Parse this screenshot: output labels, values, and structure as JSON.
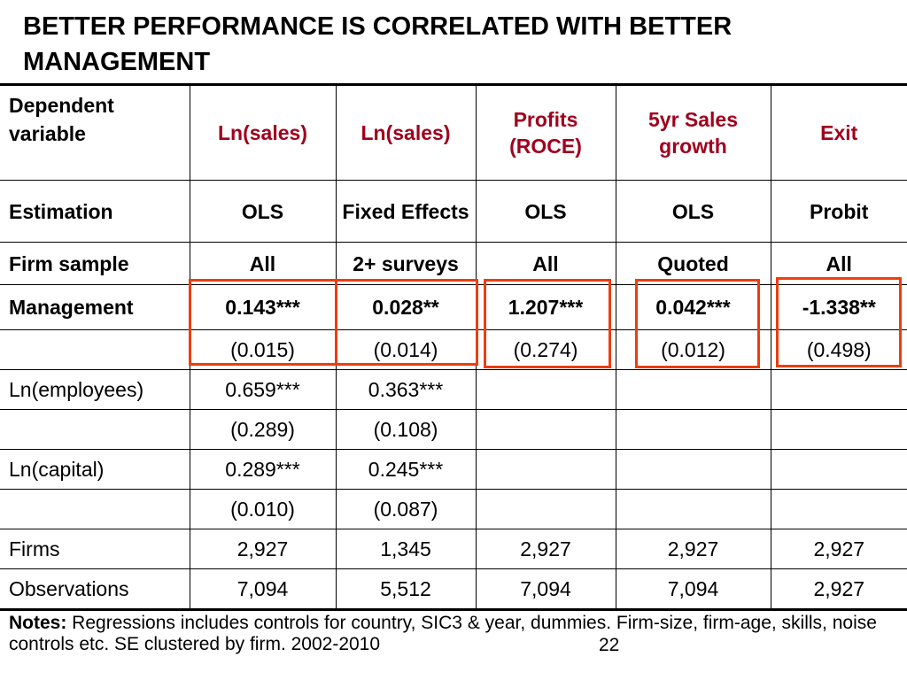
{
  "title": "BETTER PERFORMANCE IS CORRELATED WITH BETTER MANAGEMENT",
  "table": {
    "header": {
      "label": "Dependent variable",
      "columns": [
        "Ln(sales)",
        "Ln(sales)",
        "Profits (ROCE)",
        "5yr Sales growth",
        "Exit"
      ]
    },
    "rows": [
      {
        "label": "Estimation",
        "bold": true,
        "cells": [
          "OLS",
          "Fixed Effects",
          "OLS",
          "OLS",
          "Probit"
        ]
      },
      {
        "label": "Firm sample",
        "bold": true,
        "cells": [
          "All",
          "2+ surveys",
          "All",
          "Quoted",
          "All"
        ]
      },
      {
        "label": "Management",
        "bold": true,
        "cells": [
          "0.143***",
          "0.028**",
          "1.207***",
          "0.042***",
          "-1.338**"
        ]
      },
      {
        "label": "",
        "bold": false,
        "cells": [
          "(0.015)",
          "(0.014)",
          "(0.274)",
          "(0.012)",
          "(0.498)"
        ]
      },
      {
        "label": "Ln(employees)",
        "bold": false,
        "cells": [
          "0.659***",
          "0.363***",
          "",
          "",
          ""
        ]
      },
      {
        "label": "",
        "bold": false,
        "cells": [
          "(0.289)",
          "(0.108)",
          "",
          "",
          ""
        ]
      },
      {
        "label": "Ln(capital)",
        "bold": false,
        "cells": [
          "0.289***",
          "0.245***",
          "",
          "",
          ""
        ]
      },
      {
        "label": "",
        "bold": false,
        "cells": [
          "(0.010)",
          "(0.087)",
          "",
          "",
          ""
        ]
      },
      {
        "label": "Firms",
        "bold": false,
        "cells": [
          "2,927",
          "1,345",
          "2,927",
          "2,927",
          "2,927"
        ]
      },
      {
        "label": "Observations",
        "bold": false,
        "cells": [
          "7,094",
          "5,512",
          "7,094",
          "7,094",
          "2,927"
        ]
      }
    ]
  },
  "notes": {
    "label": "Notes:",
    "text": " Regressions includes controls for country, SIC3 & year, dummies. Firm-size, firm-age, skills, noise controls etc. SE clustered by firm. 2002-2010"
  },
  "page_number": "22",
  "highlight_color": "#ee3d0f"
}
